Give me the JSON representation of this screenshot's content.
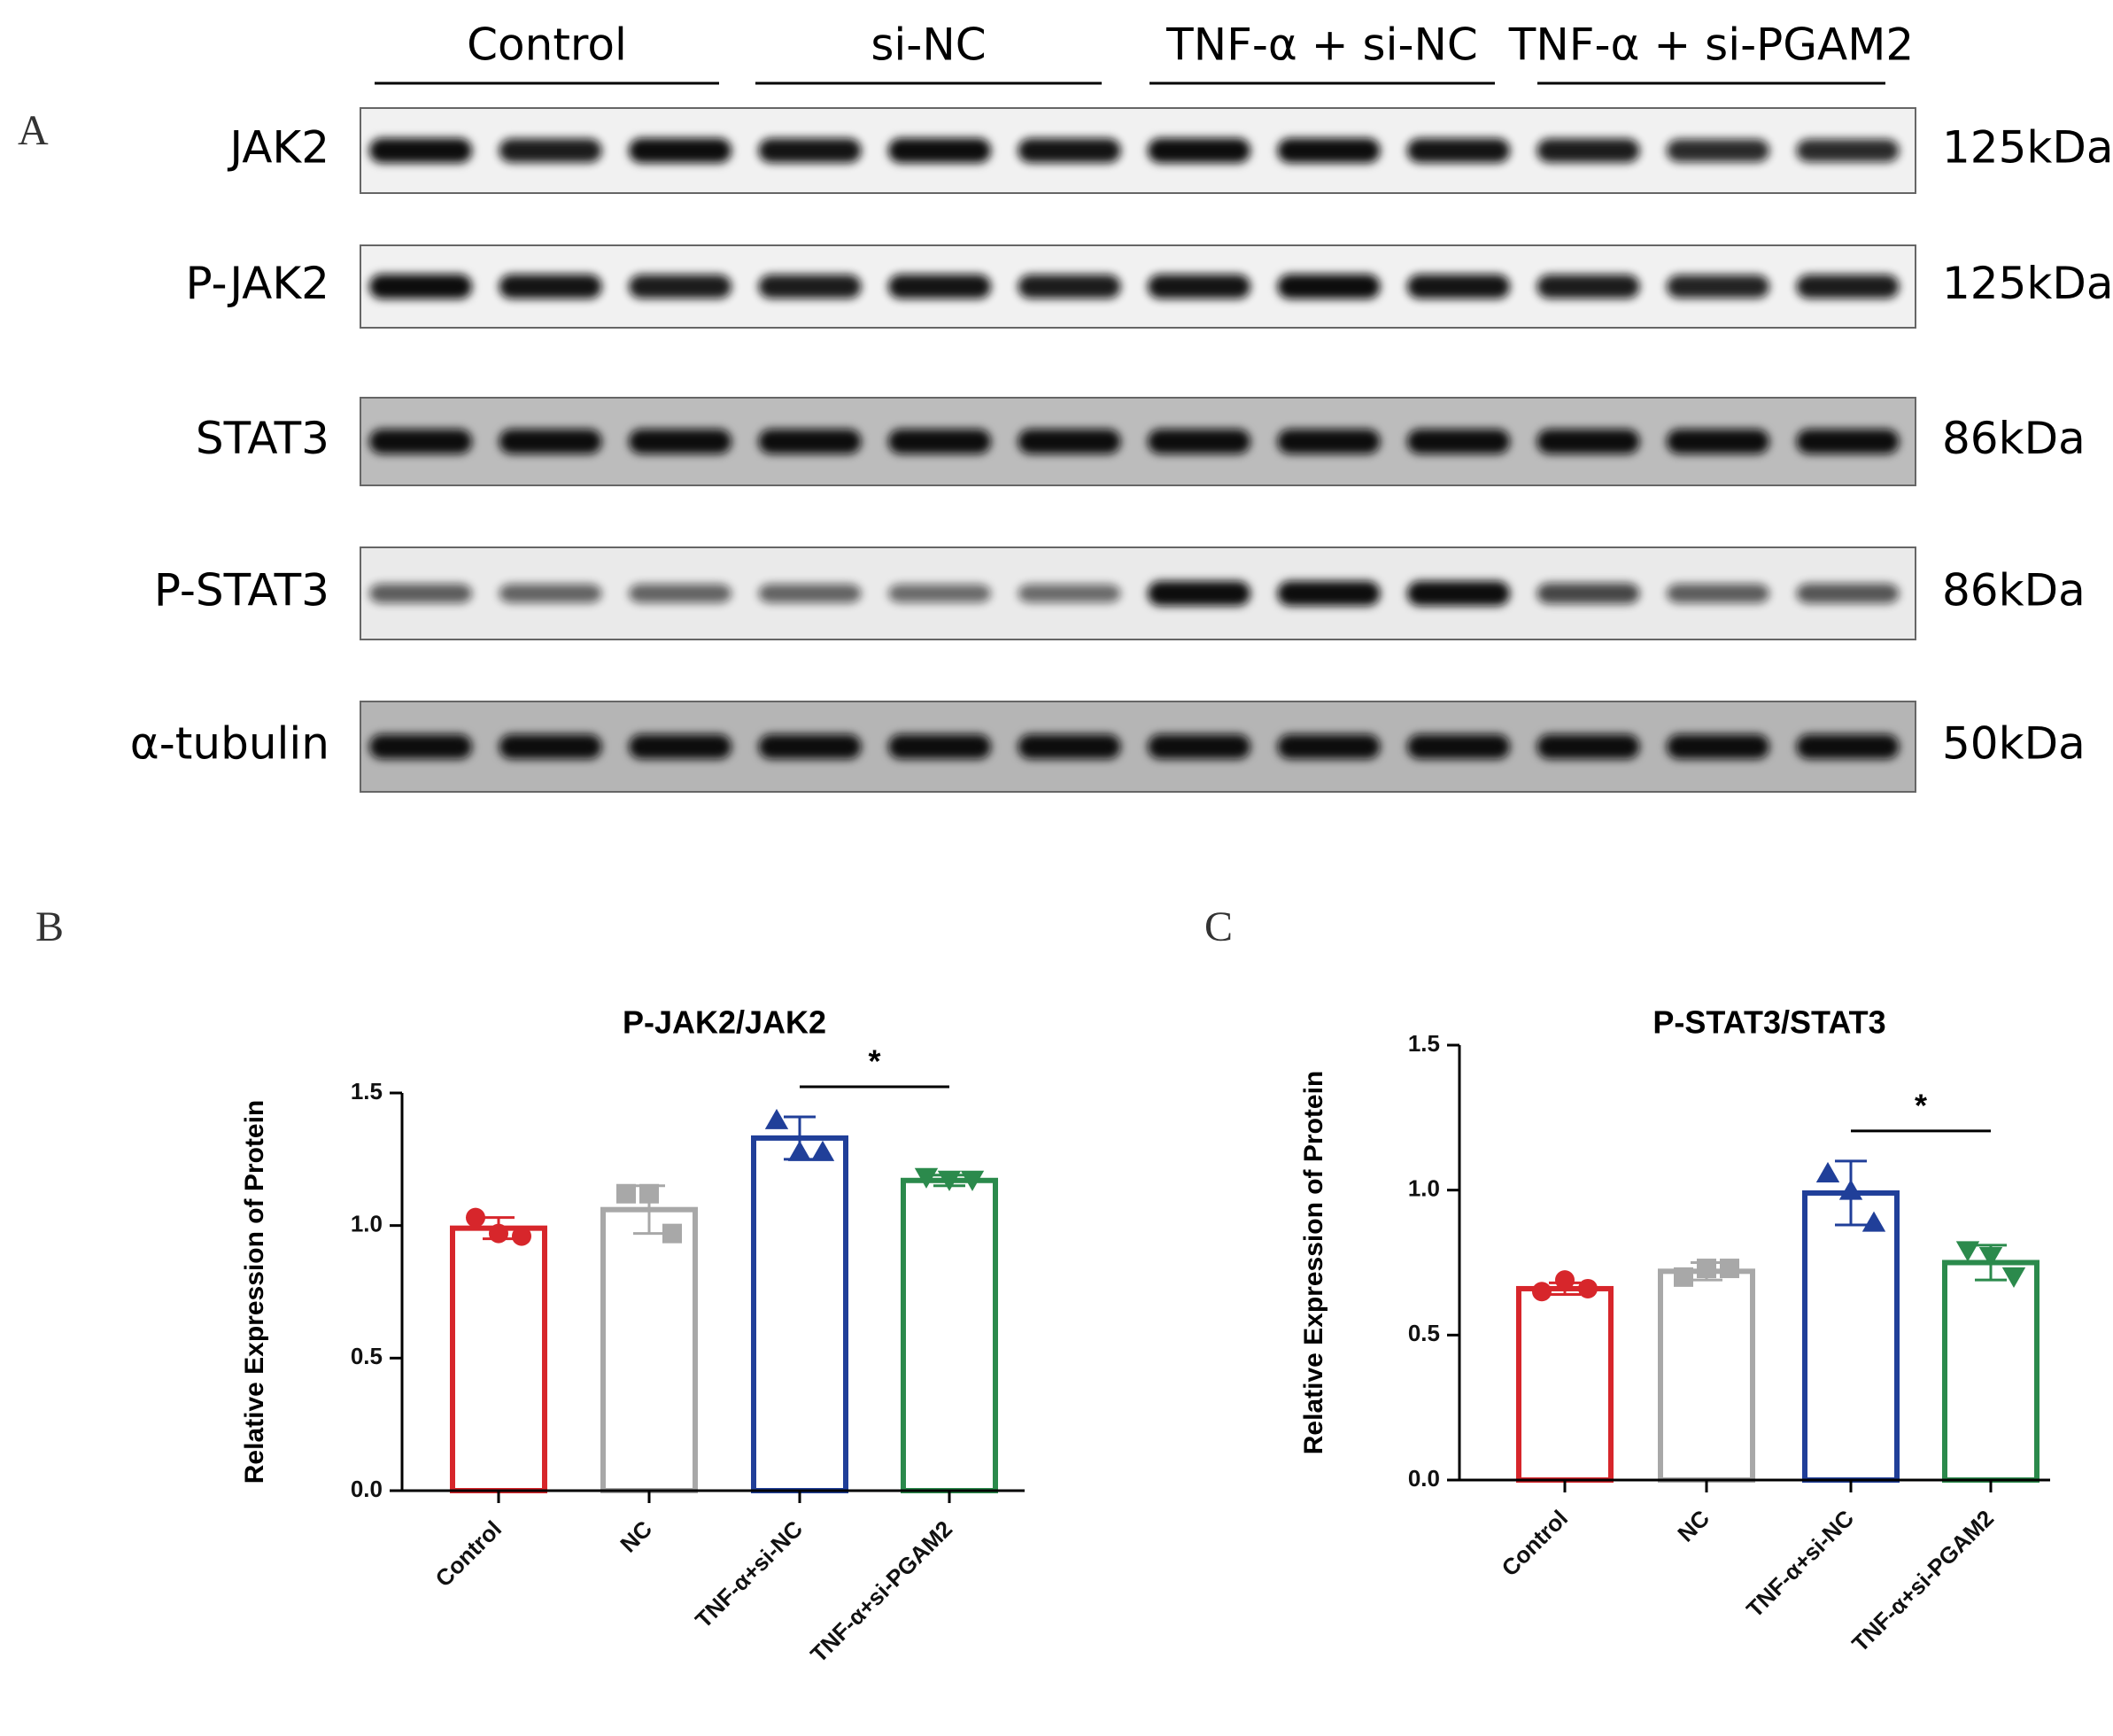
{
  "blot": {
    "panel": "A",
    "groups": [
      "Control",
      "si-NC",
      "TNF-α + si-NC",
      "TNF-α + si-PGAM2"
    ],
    "rows": [
      {
        "label": "JAK2",
        "size": "125kDa"
      },
      {
        "label": "P-JAK2",
        "size": "125kDa"
      },
      {
        "label": "STAT3",
        "size": "86kDa"
      },
      {
        "label": "P-STAT3",
        "size": "86kDa"
      },
      {
        "label": "α-tubulin",
        "size": "50kDa"
      }
    ]
  },
  "chart_data": [
    {
      "type": "bar",
      "panel": "B",
      "title": "P-JAK2/JAK2",
      "ylabel": "Relative Expression of Protein",
      "categories": [
        "Control",
        "NC",
        "TNF-α+si-NC",
        "TNF-α+si-PGAM2"
      ],
      "values": [
        0.99,
        1.06,
        1.33,
        1.17
      ],
      "errors": [
        0.04,
        0.09,
        0.08,
        0.02
      ],
      "points": [
        [
          1.03,
          0.97,
          0.96
        ],
        [
          1.12,
          1.12,
          0.97
        ],
        [
          1.4,
          1.28,
          1.28
        ],
        [
          1.18,
          1.17,
          1.17
        ]
      ],
      "colors": [
        "#d7262b",
        "#a8a8a8",
        "#203f99",
        "#2b8a4c"
      ],
      "markers": [
        "circle",
        "square",
        "triangle-up",
        "triangle-down"
      ],
      "ylim": [
        0,
        1.5
      ],
      "yticks": [
        {
          "value": 0,
          "label": "0.0"
        },
        {
          "value": 0.5,
          "label": "0.5"
        },
        {
          "value": 1,
          "label": "1.0"
        },
        {
          "value": 1.5,
          "label": "1.5"
        }
      ],
      "significance": [
        {
          "label": "*",
          "categories": [
            2,
            3
          ]
        }
      ]
    },
    {
      "type": "bar",
      "panel": "C",
      "title": "P-STAT3/STAT3",
      "ylabel": "Relative Expression of Protein",
      "categories": [
        "Control",
        "NC",
        "TNF-α+si-NC",
        "TNF-α+si-PGAM2"
      ],
      "values": [
        0.66,
        0.72,
        0.99,
        0.75
      ],
      "errors": [
        0.02,
        0.03,
        0.11,
        0.06
      ],
      "points": [
        [
          0.65,
          0.69,
          0.66
        ],
        [
          0.7,
          0.73,
          0.73
        ],
        [
          1.06,
          1.0,
          0.89
        ],
        [
          0.79,
          0.77,
          0.7
        ]
      ],
      "colors": [
        "#d7262b",
        "#a8a8a8",
        "#203f99",
        "#2b8a4c"
      ],
      "markers": [
        "circle",
        "square",
        "triangle-up",
        "triangle-down"
      ],
      "ylim": [
        0,
        1.5
      ],
      "yticks": [
        {
          "value": 0,
          "label": "0.0"
        },
        {
          "value": 0.5,
          "label": "0.5"
        },
        {
          "value": 1,
          "label": "1.0"
        },
        {
          "value": 1.5,
          "label": "1.5"
        }
      ],
      "significance": [
        {
          "label": "*",
          "categories": [
            2,
            3
          ]
        }
      ]
    }
  ]
}
